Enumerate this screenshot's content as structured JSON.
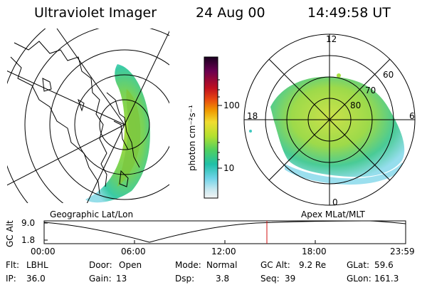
{
  "header": {
    "instrument": "Ultraviolet Imager",
    "date": "24 Aug 00",
    "time": "14:49:58 UT"
  },
  "colorbar": {
    "unit_label": "photon cm⁻²s⁻¹",
    "ticks": [
      "100",
      "10"
    ],
    "colors": [
      "#2a0030",
      "#7a0050",
      "#c80020",
      "#e84010",
      "#f09000",
      "#f0d020",
      "#b0e030",
      "#40d060",
      "#20c0a0",
      "#60d0e0",
      "#c0e8f0",
      "#f0f0f0"
    ]
  },
  "geographic_panel": {
    "label": "Geographic Lat/Lon"
  },
  "polar_panel": {
    "label": "Apex MLat/MLT",
    "mlt_labels": {
      "top": "12",
      "left": "18",
      "right": "6",
      "bottom": "0"
    },
    "lat_labels": [
      "60",
      "70",
      "80"
    ]
  },
  "altitude_plot": {
    "ylabel": "GC Alt",
    "yticks": [
      "9.0",
      "1.8"
    ],
    "xticks": [
      "00:00",
      "06:00",
      "12:00",
      "18:00",
      "23:59"
    ],
    "current_time_marker": "14:49:58"
  },
  "status": {
    "row1": [
      {
        "key": "Flt:",
        "value": "LBHL"
      },
      {
        "key": "Door:",
        "value": "Open"
      },
      {
        "key": "Mode:",
        "value": "Normal"
      },
      {
        "key": "GC Alt:",
        "value": "9.2 Re"
      },
      {
        "key": "GLat:",
        "value": "59.6"
      }
    ],
    "row2": [
      {
        "key": "IP:",
        "value": "36.0"
      },
      {
        "key": "Gain:",
        "value": "13"
      },
      {
        "key": "Dsp:",
        "value": "3.8"
      },
      {
        "key": "Seq:",
        "value": "39"
      },
      {
        "key": "GLon:",
        "value": "161.3"
      }
    ]
  }
}
